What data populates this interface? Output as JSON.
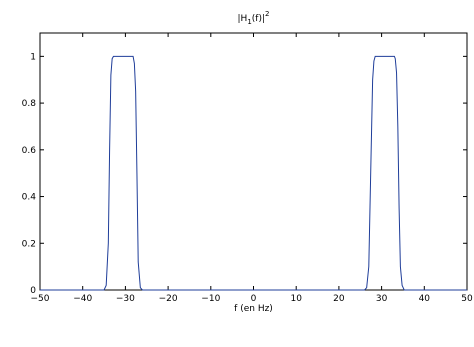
{
  "chart_data": {
    "type": "line",
    "title_main": "|H",
    "title_sub": "1",
    "title_rest": "(f)|",
    "title_sup": "2",
    "xlabel": "f (en Hz)",
    "ylabel": "",
    "xlim": [
      -50,
      50
    ],
    "ylim": [
      0,
      1.1
    ],
    "grid": false,
    "xticks": [
      -50,
      -40,
      -30,
      -20,
      -10,
      0,
      10,
      20,
      30,
      40,
      50
    ],
    "xtick_labels": [
      "−50",
      "−40",
      "−30",
      "−20",
      "−10",
      "0",
      "10",
      "20",
      "30",
      "40",
      "50"
    ],
    "yticks": [
      0,
      0.2,
      0.4,
      0.6,
      0.8,
      1
    ],
    "ytick_labels": [
      "0",
      "0.2",
      "0.4",
      "0.6",
      "0.8",
      "1"
    ],
    "series": [
      {
        "color": "#1f3d99",
        "x": [
          -50,
          -35,
          -34.5,
          -34,
          -33.7,
          -33.4,
          -33.1,
          -32.8,
          -32.5,
          -32,
          -31,
          -30,
          -29,
          -28.2,
          -27.9,
          -27.6,
          -27.3,
          -27,
          -26.5,
          -26,
          26,
          26.5,
          27,
          27.5,
          27.9,
          28.2,
          28.5,
          28.8,
          29.2,
          30,
          31,
          32,
          33,
          33.2,
          33.5,
          33.8,
          34.1,
          34.4,
          34.8,
          35.3,
          50
        ],
        "y": [
          0,
          0,
          0.02,
          0.2,
          0.6,
          0.92,
          0.99,
          1,
          1,
          1,
          1,
          1,
          1,
          1,
          0.97,
          0.85,
          0.5,
          0.12,
          0.01,
          0,
          0,
          0.01,
          0.1,
          0.55,
          0.9,
          0.98,
          1,
          1,
          1,
          1,
          1,
          1,
          1,
          0.99,
          0.93,
          0.7,
          0.35,
          0.1,
          0.02,
          0,
          0
        ]
      }
    ]
  },
  "colors": {
    "line": "#1f3d99",
    "axis": "#000000",
    "background": "#ffffff"
  }
}
